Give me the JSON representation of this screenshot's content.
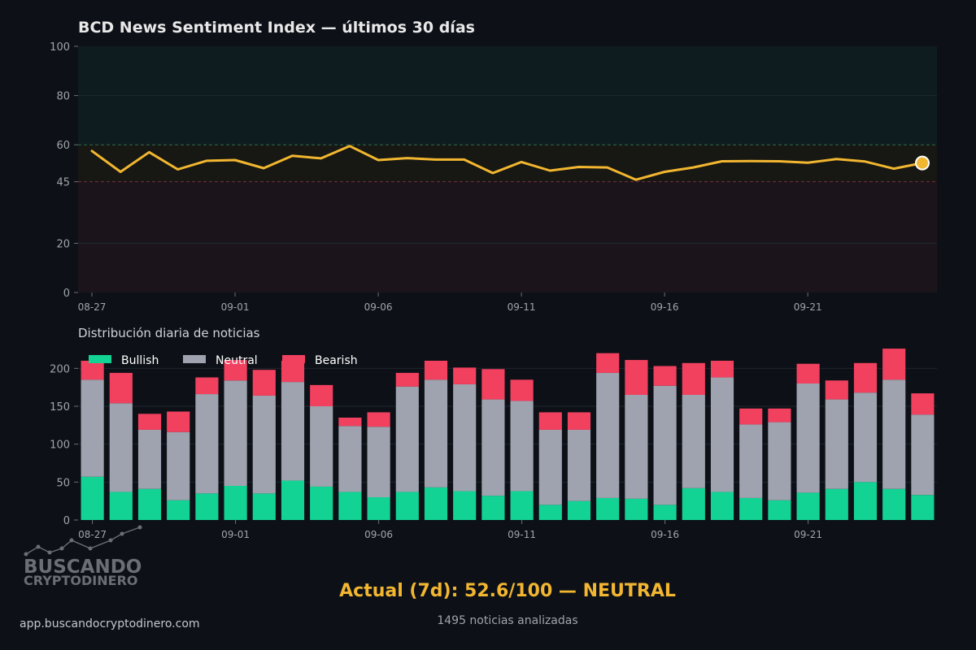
{
  "chart_data": [
    {
      "type": "line",
      "title": "BCD News Sentiment Index — últimos 30 días",
      "ylim": [
        0,
        100
      ],
      "yticks": [
        0,
        20,
        45,
        60,
        80,
        100
      ],
      "zones": [
        {
          "name": "bullish",
          "range": [
            60,
            100
          ],
          "color": "#0e1c20"
        },
        {
          "name": "neutral",
          "range": [
            45,
            60
          ],
          "color": "#171813"
        },
        {
          "name": "bearish",
          "range": [
            0,
            45
          ],
          "color": "#1b141b"
        }
      ],
      "threshold_lines": [
        {
          "value": 60,
          "color": "#2e6b4e"
        },
        {
          "value": 45,
          "color": "#7a2f38"
        }
      ],
      "x_tick_labels": [
        "08-27",
        "09-01",
        "09-06",
        "09-11",
        "09-16",
        "09-21"
      ],
      "x_tick_indices": [
        0,
        5,
        10,
        15,
        20,
        25
      ],
      "x": [
        "08-27",
        "08-28",
        "08-29",
        "08-30",
        "08-31",
        "09-01",
        "09-02",
        "09-03",
        "09-04",
        "09-05",
        "09-06",
        "09-07",
        "09-08",
        "09-09",
        "09-10",
        "09-11",
        "09-12",
        "09-13",
        "09-14",
        "09-15",
        "09-16",
        "09-17",
        "09-18",
        "09-19",
        "09-20",
        "09-21",
        "09-22",
        "09-23",
        "09-24",
        "09-25"
      ],
      "series": [
        {
          "values": [
            57.5,
            49.0,
            57.0,
            50.0,
            53.5,
            53.8,
            50.5,
            55.5,
            54.5,
            59.5,
            53.8,
            54.6,
            54.0,
            54.0,
            48.5,
            53.0,
            49.5,
            51.0,
            50.8,
            45.8,
            49.0,
            50.8,
            53.3,
            53.4,
            53.3,
            52.7,
            54.2,
            53.2,
            50.3,
            52.6
          ],
          "color": "#f2b630"
        }
      ],
      "grid": true
    },
    {
      "type": "bar",
      "stacked": true,
      "title": "Distribución diaria de noticias",
      "ylim": [
        0,
        225
      ],
      "yticks": [
        0,
        50,
        100,
        150,
        200
      ],
      "legend_position": "top-left",
      "x_tick_labels": [
        "08-27",
        "09-01",
        "09-06",
        "09-11",
        "09-16",
        "09-21"
      ],
      "x_tick_indices": [
        0,
        5,
        10,
        15,
        20,
        25
      ],
      "categories": [
        "08-27",
        "08-28",
        "08-29",
        "08-30",
        "08-31",
        "09-01",
        "09-02",
        "09-03",
        "09-04",
        "09-05",
        "09-06",
        "09-07",
        "09-08",
        "09-09",
        "09-10",
        "09-11",
        "09-12",
        "09-13",
        "09-14",
        "09-15",
        "09-16",
        "09-17",
        "09-18",
        "09-19",
        "09-20",
        "09-21",
        "09-22",
        "09-23",
        "09-24",
        "09-25"
      ],
      "series": [
        {
          "name": "Bullish",
          "color": "#12d394",
          "values": [
            57,
            37,
            41,
            26,
            35,
            45,
            35,
            52,
            44,
            37,
            30,
            37,
            43,
            38,
            32,
            38,
            20,
            25,
            29,
            28,
            20,
            42,
            37,
            29,
            26,
            36,
            41,
            50,
            41,
            33
          ]
        },
        {
          "name": "Neutral",
          "color": "#9ea3af",
          "values": [
            128,
            117,
            78,
            90,
            131,
            139,
            129,
            130,
            106,
            87,
            93,
            139,
            142,
            141,
            127,
            119,
            99,
            94,
            165,
            137,
            157,
            123,
            151,
            97,
            103,
            144,
            118,
            118,
            144,
            106
          ]
        },
        {
          "name": "Bearish",
          "color": "#f2405f",
          "values": [
            25,
            40,
            21,
            27,
            22,
            27,
            34,
            28,
            28,
            11,
            19,
            18,
            25,
            22,
            40,
            28,
            23,
            23,
            26,
            46,
            26,
            42,
            22,
            21,
            18,
            26,
            25,
            39,
            41,
            28
          ]
        }
      ],
      "grid": true
    }
  ],
  "summary": {
    "label": "Actual (7d):  52.6/100  —  NEUTRAL",
    "count": "1495 noticias analizadas"
  },
  "branding": {
    "logo_line1": "BUSCANDO",
    "logo_line2": "CRYPTODINERO",
    "url": "app.buscandocryptodinero.com"
  }
}
